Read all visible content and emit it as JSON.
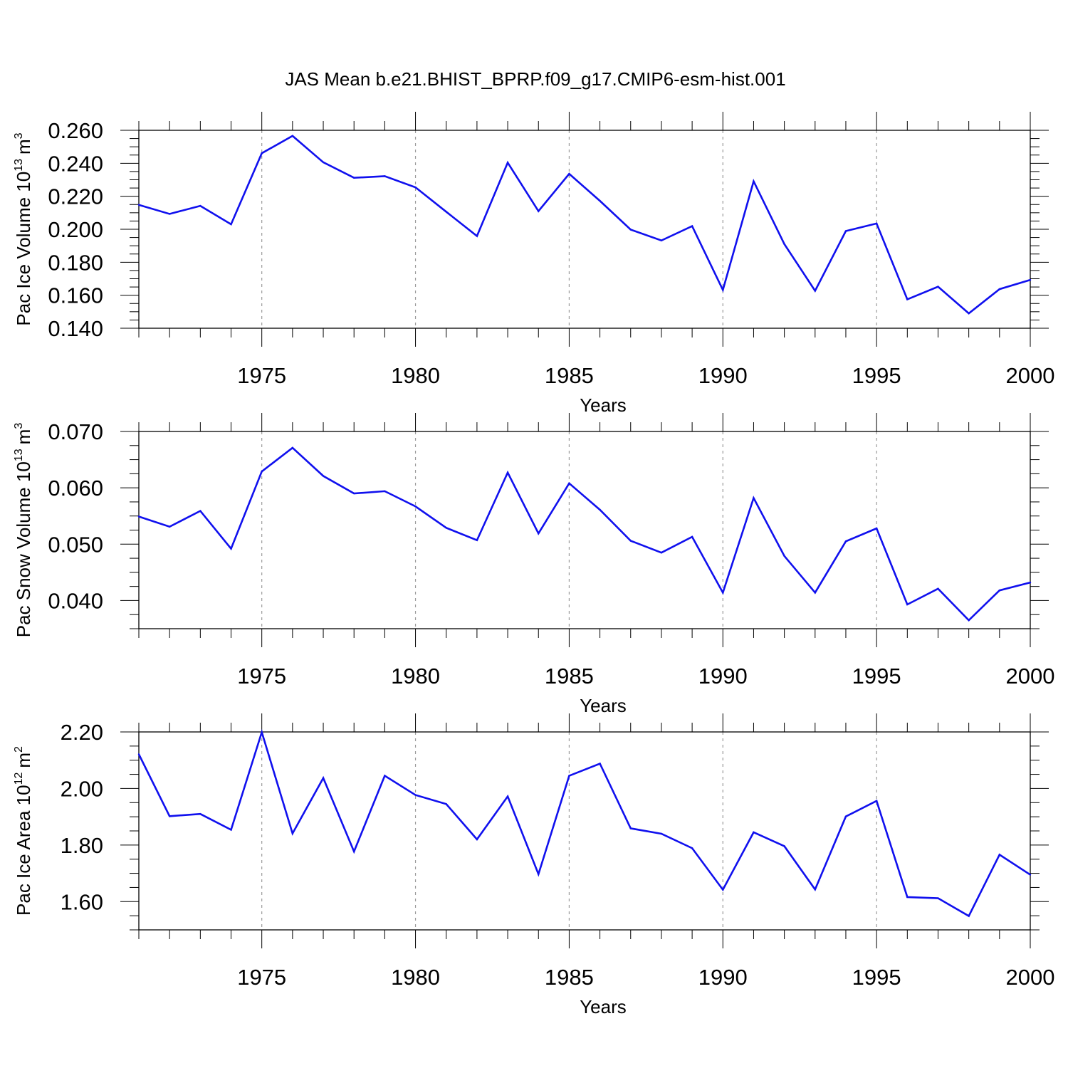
{
  "title": "JAS Mean b.e21.BHIST_BPRP.f09_g17.CMIP6-esm-hist.001",
  "colors": {
    "line": "#1010ee",
    "axis": "#000000",
    "grid": "#9a9a9a"
  },
  "chart_data": [
    {
      "type": "line",
      "name": "pac-ice-volume",
      "ylabel_main": "Pac Ice Volume 10",
      "ylabel_exp": "13",
      "ylabel_unit": "m",
      "ylabel_unit_exp": "3",
      "xlabel": "Years",
      "xlim": [
        1971,
        2000
      ],
      "ylim": [
        0.14,
        0.26
      ],
      "yticks": [
        0.14,
        0.16,
        0.18,
        0.2,
        0.22,
        0.24,
        0.26
      ],
      "ytick_labels": [
        "0.140",
        "0.160",
        "0.180",
        "0.200",
        "0.220",
        "0.240",
        "0.260"
      ],
      "xticks": [
        1975,
        1980,
        1985,
        1990,
        1995,
        2000
      ],
      "xtick_labels": [
        "1975",
        "1980",
        "1985",
        "1990",
        "1995",
        "2000"
      ],
      "x": [
        1971,
        1972,
        1973,
        1974,
        1975,
        1976,
        1977,
        1978,
        1979,
        1980,
        1981,
        1982,
        1983,
        1984,
        1985,
        1986,
        1987,
        1988,
        1989,
        1990,
        1991,
        1992,
        1993,
        1994,
        1995,
        1996,
        1997,
        1998,
        1999,
        2000
      ],
      "values": [
        0.2148,
        0.2093,
        0.2142,
        0.203,
        0.2461,
        0.2566,
        0.2406,
        0.2312,
        0.2322,
        0.2254,
        0.2106,
        0.1959,
        0.2404,
        0.211,
        0.2336,
        0.2172,
        0.1998,
        0.1932,
        0.2019,
        0.1632,
        0.2291,
        0.191,
        0.1627,
        0.1989,
        0.2035,
        0.1575,
        0.1652,
        0.149,
        0.1637,
        0.1693
      ]
    },
    {
      "type": "line",
      "name": "pac-snow-volume",
      "ylabel_main": "Pac Snow Volume 10",
      "ylabel_exp": "13",
      "ylabel_unit": "m",
      "ylabel_unit_exp": "3",
      "xlabel": "Years",
      "xlim": [
        1971,
        2000
      ],
      "ylim": [
        0.035,
        0.07
      ],
      "yticks": [
        0.04,
        0.05,
        0.06,
        0.07
      ],
      "ytick_labels": [
        "0.040",
        "0.050",
        "0.060",
        "0.070"
      ],
      "xticks": [
        1975,
        1980,
        1985,
        1990,
        1995,
        2000
      ],
      "xtick_labels": [
        "1975",
        "1980",
        "1985",
        "1990",
        "1995",
        "2000"
      ],
      "x": [
        1971,
        1972,
        1973,
        1974,
        1975,
        1976,
        1977,
        1978,
        1979,
        1980,
        1981,
        1982,
        1983,
        1984,
        1985,
        1986,
        1987,
        1988,
        1989,
        1990,
        1991,
        1992,
        1993,
        1994,
        1995,
        1996,
        1997,
        1998,
        1999,
        2000
      ],
      "values": [
        0.0549,
        0.0531,
        0.0559,
        0.0492,
        0.0629,
        0.0671,
        0.0621,
        0.059,
        0.0594,
        0.0567,
        0.0529,
        0.0507,
        0.0627,
        0.0519,
        0.0608,
        0.0561,
        0.0506,
        0.0485,
        0.0513,
        0.0414,
        0.0582,
        0.0479,
        0.0414,
        0.0505,
        0.0528,
        0.0393,
        0.0421,
        0.0365,
        0.0418,
        0.0432
      ]
    },
    {
      "type": "line",
      "name": "pac-ice-area",
      "ylabel_main": "Pac Ice Area 10",
      "ylabel_exp": "12",
      "ylabel_unit": "m",
      "ylabel_unit_exp": "2",
      "xlabel": "Years",
      "xlim": [
        1971,
        2000
      ],
      "ylim": [
        1.5,
        2.2
      ],
      "yticks": [
        1.6,
        1.8,
        2.0,
        2.2
      ],
      "ytick_labels": [
        "1.60",
        "1.80",
        "2.00",
        "2.20"
      ],
      "xticks": [
        1975,
        1980,
        1985,
        1990,
        1995,
        2000
      ],
      "xtick_labels": [
        "1975",
        "1980",
        "1985",
        "1990",
        "1995",
        "2000"
      ],
      "x": [
        1971,
        1972,
        1973,
        1974,
        1975,
        1976,
        1977,
        1978,
        1979,
        1980,
        1981,
        1982,
        1983,
        1984,
        1985,
        1986,
        1987,
        1988,
        1989,
        1990,
        1991,
        1992,
        1993,
        1994,
        1995,
        1996,
        1997,
        1998,
        1999,
        2000
      ],
      "values": [
        2.121,
        1.902,
        1.91,
        1.854,
        2.199,
        1.841,
        2.037,
        1.777,
        2.045,
        1.977,
        1.945,
        1.82,
        1.972,
        1.697,
        2.045,
        2.088,
        1.859,
        1.84,
        1.789,
        1.642,
        1.845,
        1.796,
        1.643,
        1.901,
        1.956,
        1.616,
        1.612,
        1.549,
        1.766,
        1.695
      ]
    }
  ]
}
